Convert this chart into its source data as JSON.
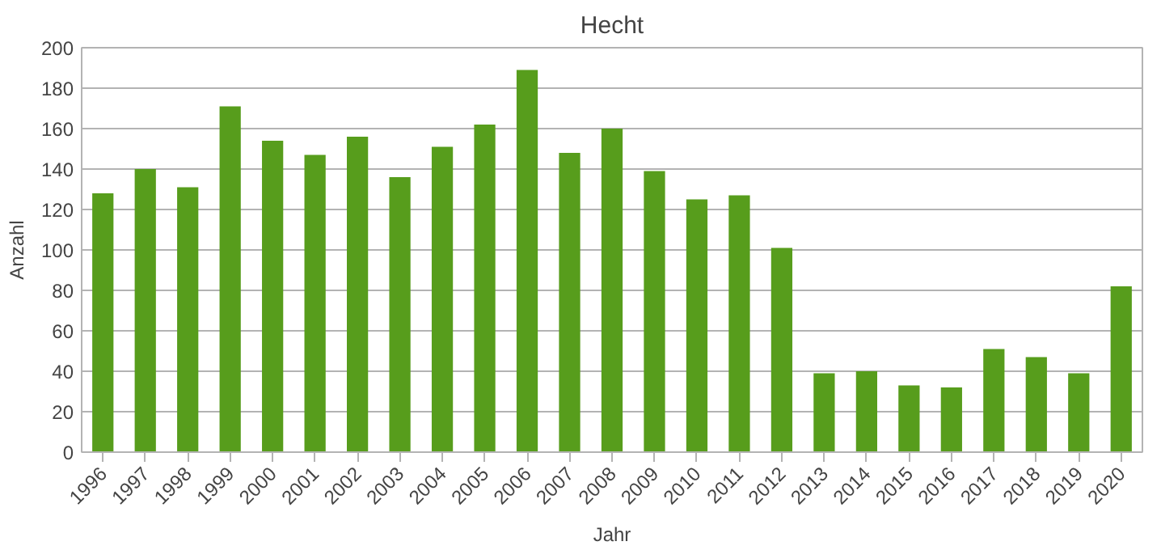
{
  "chart_data": {
    "type": "bar",
    "title": "Hecht",
    "xlabel": "Jahr",
    "ylabel": "Anzahl",
    "categories": [
      "1996",
      "1997",
      "1998",
      "1999",
      "2000",
      "2001",
      "2002",
      "2003",
      "2004",
      "2005",
      "2006",
      "2007",
      "2008",
      "2009",
      "2010",
      "2011",
      "2012",
      "2013",
      "2014",
      "2015",
      "2016",
      "2017",
      "2018",
      "2019",
      "2020"
    ],
    "values": [
      128,
      140,
      131,
      171,
      154,
      147,
      156,
      136,
      151,
      162,
      189,
      148,
      160,
      139,
      125,
      127,
      101,
      39,
      40,
      33,
      32,
      51,
      47,
      39,
      82
    ],
    "color": "#579d1c",
    "ylim": [
      0,
      200
    ],
    "yticks": [
      0,
      20,
      40,
      60,
      80,
      100,
      120,
      140,
      160,
      180,
      200
    ],
    "grid": "y"
  }
}
